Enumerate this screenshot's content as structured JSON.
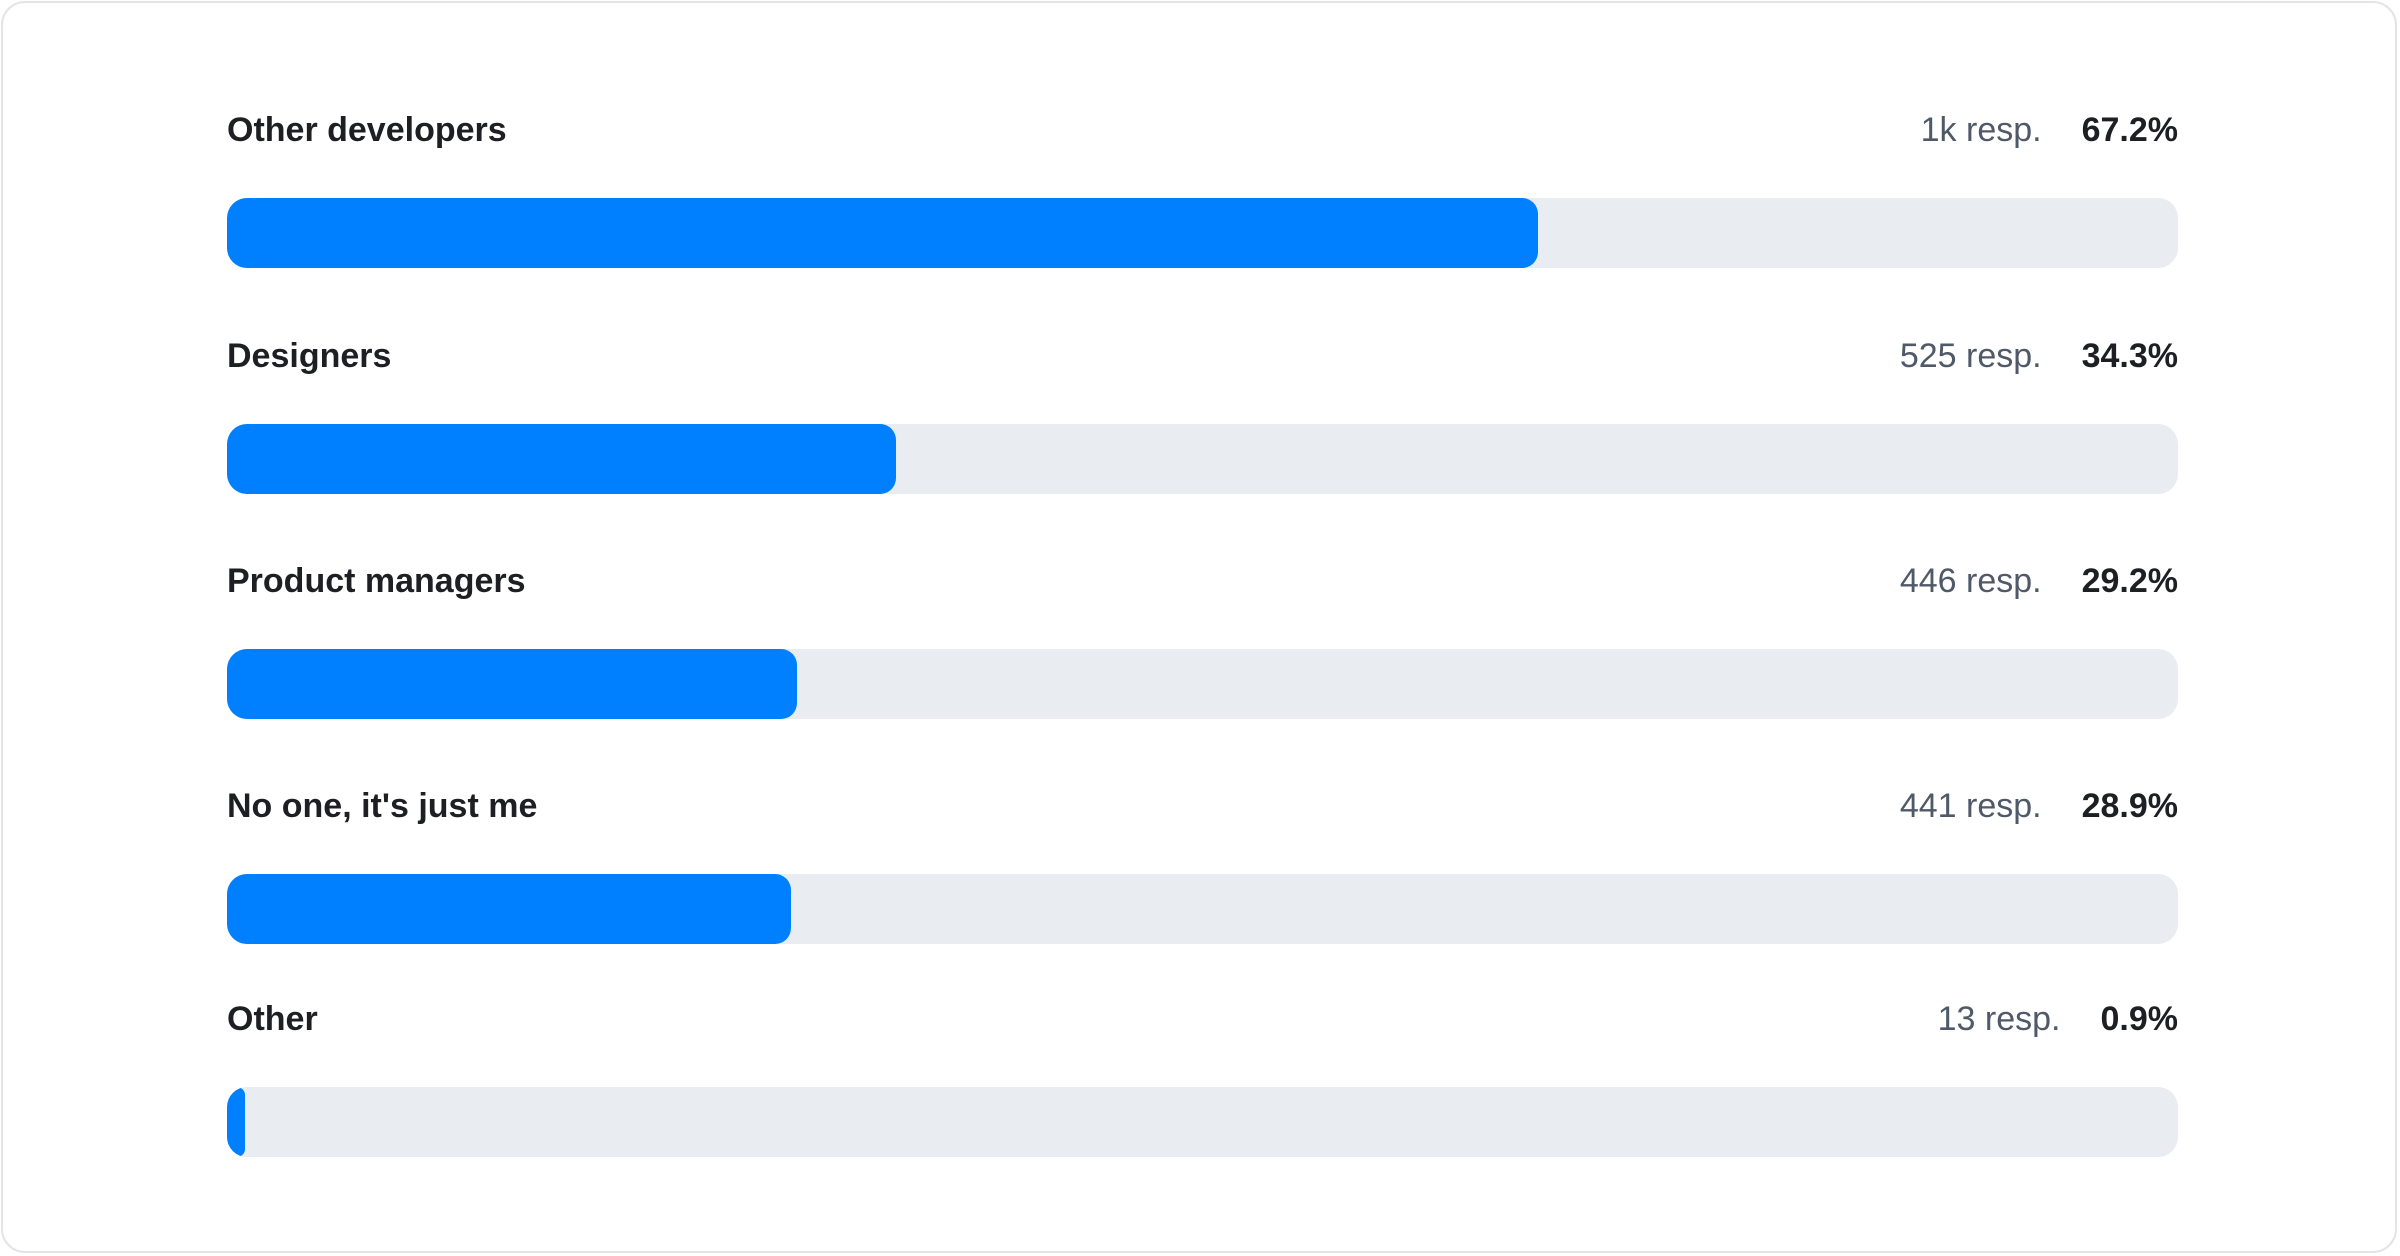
{
  "chart_data": {
    "type": "bar",
    "orientation": "horizontal",
    "xlim": [
      0,
      100
    ],
    "bar_color": "#0080ff",
    "track_color": "#e9ecf1",
    "items": [
      {
        "label": "Other developers",
        "responses": "1k resp.",
        "percent_label": "67.2%",
        "value": 67.2
      },
      {
        "label": "Designers",
        "responses": "525 resp.",
        "percent_label": "34.3%",
        "value": 34.3
      },
      {
        "label": "Product managers",
        "responses": "446 resp.",
        "percent_label": "29.2%",
        "value": 29.2
      },
      {
        "label": "No one, it's just me",
        "responses": "441 resp.",
        "percent_label": "28.9%",
        "value": 28.9
      },
      {
        "label": "Other",
        "responses": "13 resp.",
        "percent_label": "0.9%",
        "value": 0.9
      }
    ]
  }
}
